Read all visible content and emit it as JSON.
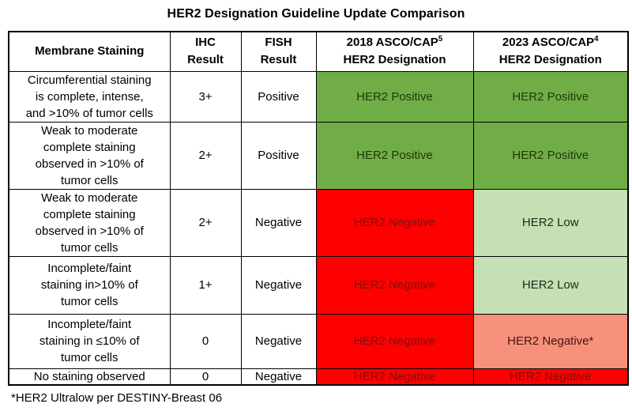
{
  "title": "HER2 Designation Guideline Update Comparison",
  "footnote": "*HER2 Ultralow per DESTINY-Breast 06",
  "cell_styles": {
    "positive": {
      "bg": "#70AD47",
      "text": "#1E3708"
    },
    "negative": {
      "bg": "#FF0000",
      "text": "#7A100E"
    },
    "low": {
      "bg": "#C5E0B4",
      "text": "#222A1B"
    },
    "ultralow": {
      "bg": "#F7917C",
      "text": "#44150E"
    }
  },
  "table": {
    "headers": {
      "membrane": "Membrane Staining",
      "ihc": "IHC\nResult",
      "fish": "FISH\nResult",
      "y2018": {
        "line1": "2018 ASCO/CAP",
        "sup": "5",
        "line2": "HER2 Designation"
      },
      "y2023": {
        "line1": "2023 ASCO/CAP",
        "sup": "4",
        "line2": "HER2 Designation"
      }
    },
    "rows": [
      {
        "membrane": "Circumferential staining\nis complete, intense,\nand >10% of tumor cells",
        "ihc": "3+",
        "fish": "Positive",
        "d2018": {
          "label": "HER2 Positive",
          "style": "positive"
        },
        "d2023": {
          "label": "HER2 Positive",
          "style": "positive"
        }
      },
      {
        "membrane": "Weak to moderate\ncomplete staining\nobserved in >10% of\ntumor cells",
        "ihc": "2+",
        "fish": "Positive",
        "d2018": {
          "label": "HER2 Positive",
          "style": "positive"
        },
        "d2023": {
          "label": "HER2 Positive",
          "style": "positive"
        }
      },
      {
        "membrane": "Weak to moderate\ncomplete staining\nobserved in >10% of\ntumor cells",
        "ihc": "2+",
        "fish": "Negative",
        "d2018": {
          "label": "HER2 Negative",
          "style": "negative"
        },
        "d2023": {
          "label": "HER2 Low",
          "style": "low"
        }
      },
      {
        "membrane": "Incomplete/faint\nstaining in>10% of\ntumor cells",
        "ihc": "1+",
        "fish": "Negative",
        "d2018": {
          "label": "HER2 Negative",
          "style": "negative"
        },
        "d2023": {
          "label": "HER2 Low",
          "style": "low"
        }
      },
      {
        "membrane": "Incomplete/faint\nstaining in ≤10% of\ntumor cells",
        "ihc": "0",
        "fish": "Negative",
        "d2018": {
          "label": "HER2 Negative",
          "style": "negative"
        },
        "d2023": {
          "label": "HER2 Negative*",
          "style": "ultralow"
        }
      },
      {
        "membrane": "No staining observed",
        "ihc": "0",
        "fish": "Negative",
        "d2018": {
          "label": "HER2 Negative",
          "style": "negative"
        },
        "d2023": {
          "label": "HER2 Negative",
          "style": "negative"
        }
      }
    ]
  }
}
